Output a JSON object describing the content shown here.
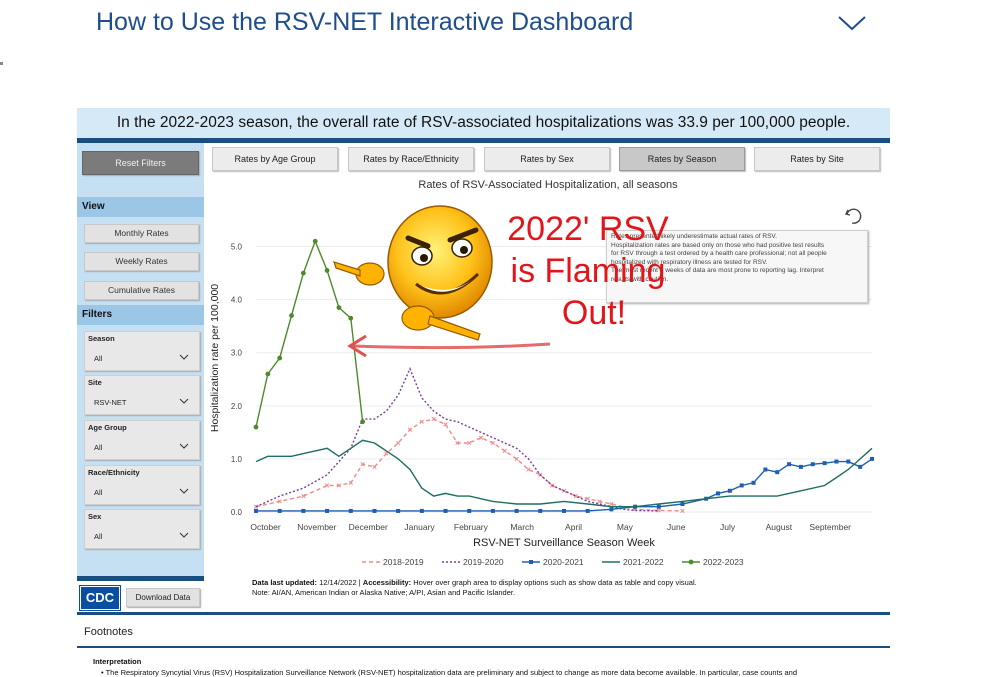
{
  "header": {
    "title": "How to Use the RSV-NET Interactive Dashboard"
  },
  "banner": {
    "text": "In the 2022-2023 season, the overall rate of RSV-associated hospitalizations was 33.9 per 100,000 people."
  },
  "sidebar": {
    "reset_label": "Reset Filters",
    "view_heading": "View",
    "view_buttons": [
      "Monthly Rates",
      "Weekly Rates",
      "Cumulative Rates"
    ],
    "filters_heading": "Filters",
    "filters": [
      {
        "label": "Season",
        "value": "All"
      },
      {
        "label": "Site",
        "value": "RSV-NET"
      },
      {
        "label": "Age Group",
        "value": "All"
      },
      {
        "label": "Race/Ethnicity",
        "value": "All"
      },
      {
        "label": "Sex",
        "value": "All"
      }
    ],
    "logo_text": "CDC",
    "download_label": "Download Data"
  },
  "tabs": [
    "Rates by Age Group",
    "Rates by Race/Ethnicity",
    "Rates by Sex",
    "Rates by Season",
    "Rates by Site"
  ],
  "active_tab": "Rates by Season",
  "tooltip_lines": [
    "Rates presented likely underestimate actual rates of RSV.",
    "Hospitalization rates are based only on those who had positive test results",
    "for RSV through a test ordered by a health care professional; not all people",
    "hospitalized with respiratory illness are tested for RSV.",
    "The most recent 3 weeks of data are most prone to reporting lag. Interpret",
    "results with caution."
  ],
  "overlay": {
    "lines": [
      "2022' RSV",
      "is Flaming",
      "Out!"
    ],
    "color": "#e3151a"
  },
  "chart_data": {
    "type": "line",
    "title": "Rates of RSV-Associated Hospitalization, all seasons",
    "xlabel": "RSV-NET Surveillance Season Week",
    "ylabel": "Hospitalization rate per 100,000",
    "ylim": [
      0,
      5.5
    ],
    "y_ticks": [
      "0.0",
      "1.0",
      "2.0",
      "3.0",
      "4.0",
      "5.0"
    ],
    "x_ticks": [
      "October",
      "November",
      "December",
      "January",
      "February",
      "March",
      "April",
      "May",
      "June",
      "July",
      "August",
      "September"
    ],
    "x_range": [
      0,
      52
    ],
    "legend_position": "bottom",
    "series": [
      {
        "name": "2018-2019",
        "color": "#f08a8a",
        "dash": "4,3",
        "marker": "x",
        "x": [
          0,
          2,
          4,
          6,
          7,
          8,
          9,
          10,
          11,
          12,
          13,
          14,
          15,
          16,
          17,
          18,
          19,
          20,
          21,
          22,
          23,
          24,
          25,
          26,
          27,
          28,
          29,
          30,
          32,
          34,
          36
        ],
        "y": [
          0.1,
          0.2,
          0.3,
          0.5,
          0.5,
          0.55,
          0.9,
          0.85,
          1.1,
          1.3,
          1.55,
          1.7,
          1.75,
          1.65,
          1.3,
          1.3,
          1.4,
          1.3,
          1.15,
          1.0,
          0.8,
          0.7,
          0.5,
          0.4,
          0.3,
          0.25,
          0.2,
          0.15,
          0.05,
          0.03,
          0.02
        ]
      },
      {
        "name": "2019-2020",
        "color": "#7a3d99",
        "dash": "2,2",
        "marker": "none",
        "x": [
          0,
          2,
          4,
          6,
          8,
          9,
          10,
          11,
          12,
          13,
          14,
          15,
          16,
          17,
          18,
          19,
          20,
          21,
          22,
          23,
          24,
          25,
          26,
          27,
          28,
          29,
          30,
          31,
          32,
          34
        ],
        "y": [
          0.1,
          0.3,
          0.45,
          0.7,
          1.2,
          1.75,
          1.75,
          1.9,
          2.2,
          2.7,
          2.15,
          1.9,
          1.75,
          1.7,
          1.6,
          1.5,
          1.4,
          1.3,
          1.2,
          1.0,
          0.7,
          0.5,
          0.4,
          0.3,
          0.2,
          0.15,
          0.1,
          0.05,
          0.03,
          0.02
        ]
      },
      {
        "name": "2020-2021",
        "color": "#1f5fb0",
        "dash": "",
        "marker": "square",
        "x": [
          0,
          2,
          4,
          6,
          8,
          10,
          12,
          14,
          16,
          18,
          20,
          22,
          24,
          26,
          28,
          30,
          32,
          34,
          36,
          38,
          39,
          40,
          41,
          42,
          43,
          44,
          45,
          46,
          47,
          48,
          49,
          50,
          51,
          52
        ],
        "y": [
          0.02,
          0.02,
          0.02,
          0.02,
          0.02,
          0.02,
          0.02,
          0.02,
          0.02,
          0.02,
          0.02,
          0.02,
          0.02,
          0.02,
          0.02,
          0.05,
          0.1,
          0.1,
          0.15,
          0.25,
          0.35,
          0.4,
          0.5,
          0.55,
          0.8,
          0.75,
          0.9,
          0.85,
          0.9,
          0.92,
          0.95,
          0.95,
          0.85,
          1.0
        ]
      },
      {
        "name": "2021-2022",
        "color": "#1e6e63",
        "dash": "",
        "marker": "none",
        "x": [
          0,
          1,
          2,
          3,
          4,
          5,
          6,
          7,
          8,
          9,
          10,
          11,
          12,
          13,
          14,
          15,
          16,
          17,
          18,
          20,
          22,
          24,
          26,
          28,
          30,
          32,
          34,
          36,
          38,
          40,
          42,
          44,
          46,
          48,
          49,
          50,
          51,
          52
        ],
        "y": [
          0.95,
          1.05,
          1.05,
          1.05,
          1.1,
          1.15,
          1.2,
          1.05,
          1.2,
          1.35,
          1.3,
          1.15,
          1.0,
          0.8,
          0.45,
          0.3,
          0.35,
          0.3,
          0.3,
          0.2,
          0.15,
          0.15,
          0.2,
          0.15,
          0.1,
          0.1,
          0.15,
          0.2,
          0.25,
          0.3,
          0.3,
          0.3,
          0.4,
          0.5,
          0.65,
          0.8,
          1.0,
          1.2
        ]
      },
      {
        "name": "2022-2023",
        "color": "#4e8a2a",
        "dash": "",
        "marker": "circle",
        "x": [
          0,
          1,
          2,
          3,
          4,
          5,
          6,
          7,
          8,
          9
        ],
        "y": [
          1.6,
          2.6,
          2.9,
          3.7,
          4.5,
          5.1,
          4.55,
          3.85,
          3.65,
          1.7
        ]
      }
    ]
  },
  "notes": {
    "updated_label": "Data last updated:",
    "updated_value": "12/14/2022",
    "accessibility_label": "Accessibility:",
    "accessibility_value": "Hover over graph area to display options such as show data as table and copy visual.",
    "note": "Note: AI/AN, American Indian or Alaska Native; A/PI, Asian and Pacific Islander."
  },
  "footnotes": {
    "title": "Footnotes",
    "interpretation_heading": "Interpretation",
    "interpretation_body": "•  The Respiratory Syncytial Virus (RSV) Hospitalization Surveillance Network (RSV-NET) hospitalization data are preliminary and subject to change as more data become available. In particular, case counts and"
  }
}
